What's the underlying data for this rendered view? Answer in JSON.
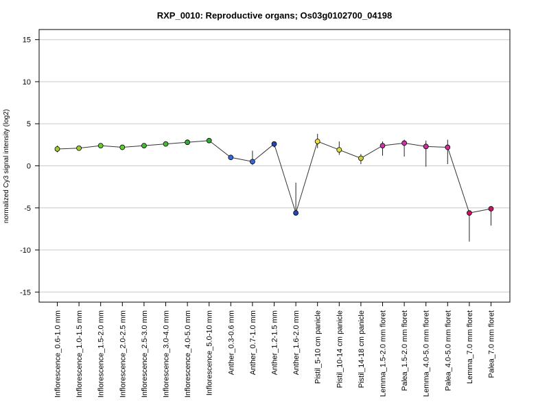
{
  "chart_data": {
    "type": "line",
    "title": "RXP_0010: Reproductive organs; Os03g0102700_04198",
    "ylabel": "normalized Cy3 signal intensity (log2)",
    "xlabel": "",
    "ylim": [
      -16.2,
      16.2
    ],
    "yticks": [
      -15,
      -10,
      -5,
      0,
      5,
      10,
      15
    ],
    "grid": true,
    "categories": [
      "Inflorescence_0.6-1.0 mm",
      "Inflorescence_1.0-1.5 mm",
      "Inflorescence_1.5-2.0 mm",
      "Inflorescence_2.0-2.5 mm",
      "Inflorescence_2.5-3.0 mm",
      "Inflorescence_3.0-4.0 mm",
      "Inflorescence_4.0-5.0 mm",
      "Inflorescence_5.0-10 mm",
      "Anther_0.3-0.6 mm",
      "Anther_0.7-1.0 mm",
      "Anther_1.2-1.5 mm",
      "Anther_1.6-2.0 mm",
      "Pistil_5-10 cm panicle",
      "Pistil_10-14 cm panicle",
      "Pistil_14-18 cm panicle",
      "Lemma_1.5-2.0 mm floret",
      "Palea_1.5-2.0 mm floret",
      "Lemma_4.0-5.0 mm floret",
      "Palea_4.0-5.0 mm floret",
      "Lemma_7.0 mm floret",
      "Palea_7.0 mm floret"
    ],
    "values": [
      2.0,
      2.1,
      2.4,
      2.2,
      2.4,
      2.6,
      2.8,
      3.0,
      1.0,
      0.5,
      2.6,
      -5.6,
      2.9,
      1.9,
      0.9,
      2.4,
      2.7,
      2.3,
      2.2,
      -5.6,
      -5.1
    ],
    "error_low": [
      1.6,
      1.9,
      2.2,
      2.0,
      2.2,
      2.4,
      2.6,
      2.8,
      0.8,
      0.1,
      2.2,
      -5.8,
      2.1,
      1.3,
      0.2,
      1.2,
      1.1,
      -0.1,
      0.2,
      -9.0,
      -7.1
    ],
    "error_high": [
      2.4,
      2.3,
      2.6,
      2.4,
      2.6,
      2.8,
      3.0,
      3.2,
      1.2,
      1.8,
      2.9,
      -2.0,
      3.8,
      2.9,
      1.4,
      2.9,
      3.1,
      3.0,
      3.1,
      -5.3,
      -4.9
    ],
    "point_colors": [
      "#9acd32",
      "#9acd32",
      "#66cc33",
      "#66cc33",
      "#44bb33",
      "#44bb33",
      "#33aa33",
      "#33aa33",
      "#3366dd",
      "#3366dd",
      "#2244bb",
      "#2244bb",
      "#eedd33",
      "#dddd44",
      "#cccc44",
      "#cc33aa",
      "#cc33aa",
      "#cc3399",
      "#cc3399",
      "#cc1166",
      "#cc1166"
    ]
  }
}
